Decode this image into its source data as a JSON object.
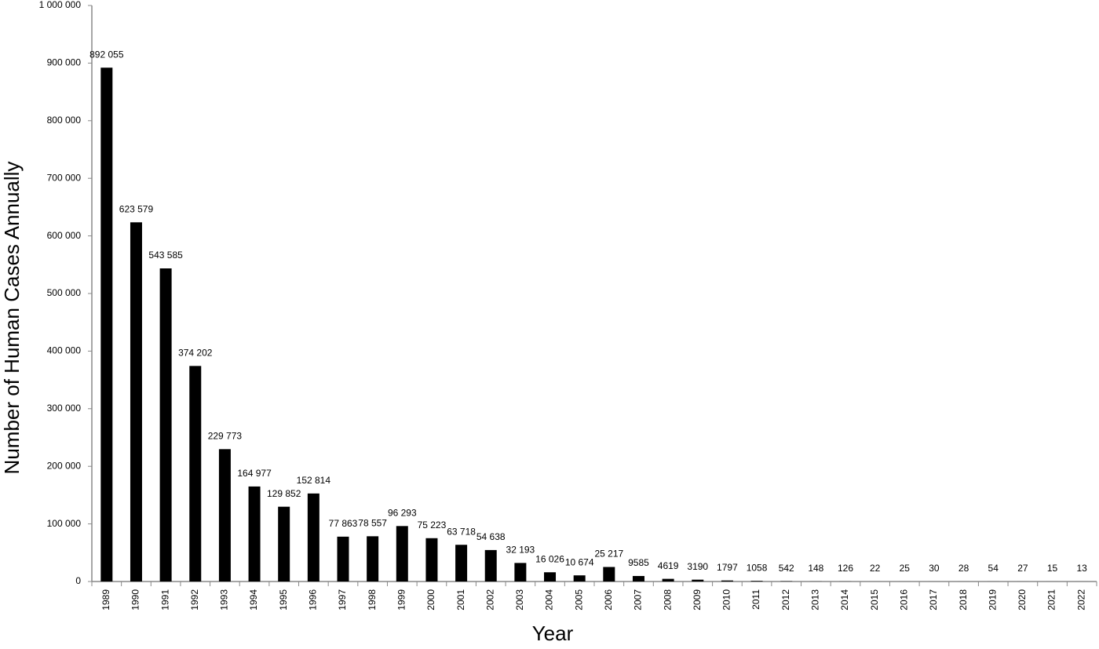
{
  "chart_data": {
    "type": "bar",
    "x_label": "Year",
    "y_label": "Number of Human Cases Annually",
    "categories": [
      "1989",
      "1990",
      "1991",
      "1992",
      "1993",
      "1994",
      "1995",
      "1996",
      "1997",
      "1998",
      "1999",
      "2000",
      "2001",
      "2002",
      "2003",
      "2004",
      "2005",
      "2006",
      "2007",
      "2008",
      "2009",
      "2010",
      "2011",
      "2012",
      "2013",
      "2014",
      "2015",
      "2016",
      "2017",
      "2018",
      "2019",
      "2020",
      "2021",
      "2022"
    ],
    "values": [
      892055,
      623579,
      543585,
      374202,
      229773,
      164977,
      129852,
      152814,
      77863,
      78557,
      96293,
      75223,
      63718,
      54638,
      32193,
      16026,
      10674,
      25217,
      9585,
      4619,
      3190,
      1797,
      1058,
      542,
      148,
      126,
      22,
      25,
      30,
      28,
      54,
      27,
      15,
      13
    ],
    "value_labels": [
      "892 055",
      "623 579",
      "543 585",
      "374 202",
      "229 773",
      "164 977",
      "129 852",
      "152 814",
      "77 863",
      "78 557",
      "96 293",
      "75 223",
      "63 718",
      "54 638",
      "32 193",
      "16 026",
      "10 674",
      "25 217",
      "9585",
      "4619",
      "3190",
      "1797",
      "1058",
      "542",
      "148",
      "126",
      "22",
      "25",
      "30",
      "28",
      "54",
      "27",
      "15",
      "13"
    ],
    "color": "#000000",
    "ylim": [
      0,
      1000000
    ],
    "yticks": [
      0,
      {
        "value": 100000,
        "label": "100 000"
      },
      {
        "value": 200000,
        "label": "200 000"
      },
      {
        "value": 300000,
        "label": "300 000"
      },
      {
        "value": 400000,
        "label": "400 000"
      },
      {
        "value": 500000,
        "label": "500 000"
      },
      {
        "value": 600000,
        "label": "600 000"
      },
      {
        "value": 700000,
        "label": "700 000"
      },
      {
        "value": 800000,
        "label": "800 000"
      },
      {
        "value": 900000,
        "label": "900 000"
      },
      {
        "value": 1000000,
        "label": "1 000 000"
      }
    ],
    "grid": false
  }
}
